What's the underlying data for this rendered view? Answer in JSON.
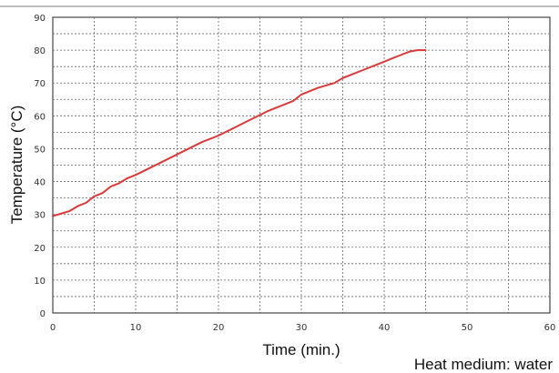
{
  "chart_data": {
    "type": "line",
    "title": "",
    "xlabel": "Time (min.)",
    "ylabel": "Temperature (°C)",
    "xlim": [
      0,
      60
    ],
    "ylim": [
      0,
      90
    ],
    "x_ticks": [
      "0",
      "10",
      "20",
      "30",
      "40",
      "50",
      "60"
    ],
    "y_ticks": [
      "0",
      "10",
      "20",
      "30",
      "40",
      "50",
      "60",
      "70",
      "80",
      "90"
    ],
    "grid": true,
    "series": [
      {
        "color": "#d93a3a",
        "x": [
          0,
          2,
          3,
          4,
          5,
          6,
          7,
          8,
          9,
          10,
          12,
          14,
          16,
          18,
          20,
          22,
          24,
          26,
          28,
          29,
          30,
          32,
          34,
          35,
          36,
          38,
          39,
          40,
          41,
          42,
          43,
          44,
          45
        ],
        "y": [
          29.5,
          31,
          32.5,
          33.5,
          35.5,
          36.5,
          38.5,
          39.5,
          41,
          42,
          44.5,
          47,
          49.5,
          52,
          54,
          56.5,
          59,
          61.5,
          63.5,
          64.5,
          66.5,
          68.5,
          70,
          71.5,
          72.5,
          74.5,
          75.5,
          76.5,
          77.5,
          78.5,
          79.5,
          80,
          80
        ]
      }
    ],
    "annotation": "Heat medium: water"
  }
}
